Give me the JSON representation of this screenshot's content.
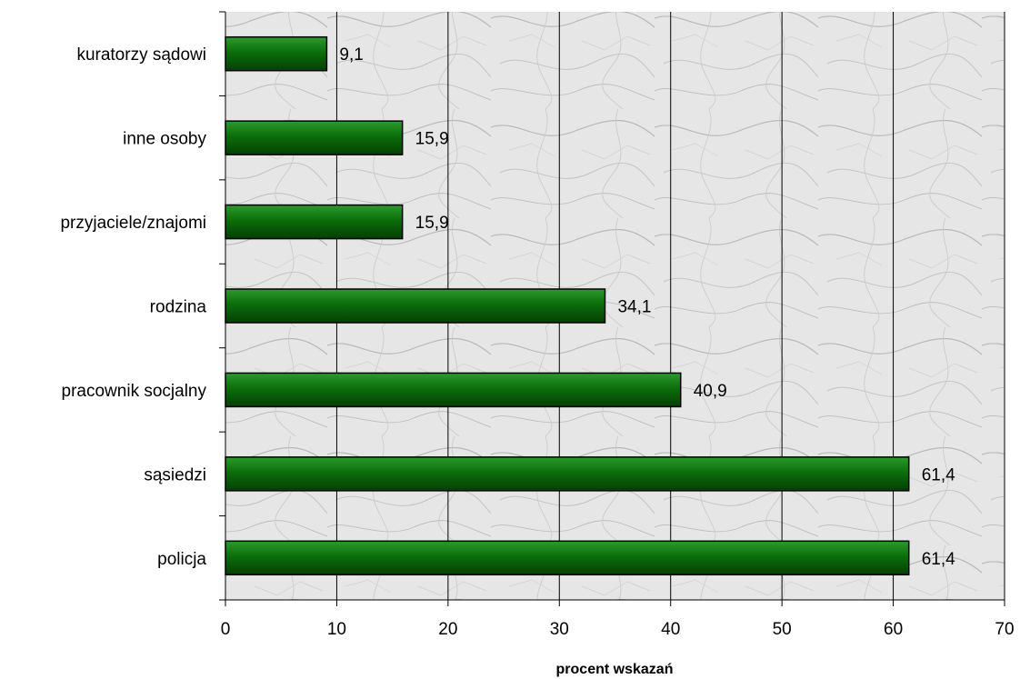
{
  "chart_data": {
    "type": "bar",
    "orientation": "horizontal",
    "categories": [
      "kuratorzy sądowi",
      "inne osoby",
      "przyjaciele/znajomi",
      "rodzina",
      "pracownik socjalny",
      "sąsiedzi",
      "policja"
    ],
    "values": [
      9.1,
      15.9,
      15.9,
      34.1,
      40.9,
      61.4,
      61.4
    ],
    "value_labels": [
      "9,1",
      "15,9",
      "15,9",
      "34,1",
      "40,9",
      "61,4",
      "61,4"
    ],
    "xlabel": "procent wskazań",
    "ylabel": "",
    "xlim": [
      0,
      70
    ],
    "x_ticks": [
      "0",
      "10",
      "20",
      "30",
      "40",
      "50",
      "60",
      "70"
    ],
    "grid": "vertical",
    "legend": "none",
    "colors": {
      "bar": "#0b6e0b",
      "bar_dark": "#053f05",
      "bar_light": "#2e9a2e",
      "gridline": "#000000",
      "plot_background": "#e4e4e4"
    }
  }
}
